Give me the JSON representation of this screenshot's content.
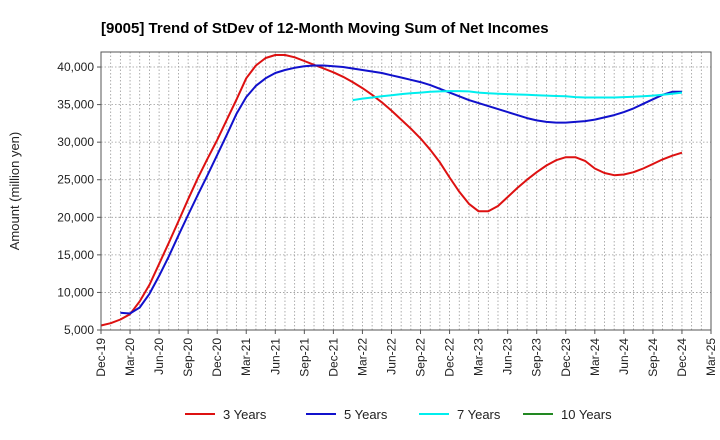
{
  "chart_data": {
    "type": "line",
    "title": "[9005]  Trend of StDev of 12-Month Moving Sum of Net Incomes",
    "ylabel": "Amount (million yen)",
    "xlabel": "",
    "ylim": [
      5000,
      42000
    ],
    "yticks": [
      5000,
      10000,
      15000,
      20000,
      25000,
      30000,
      35000,
      40000
    ],
    "ytick_labels": [
      "5,000",
      "10,000",
      "15,000",
      "20,000",
      "25,000",
      "30,000",
      "35,000",
      "40,000"
    ],
    "xticks": [
      "Dec-19",
      "Mar-20",
      "Jun-20",
      "Sep-20",
      "Dec-20",
      "Mar-21",
      "Jun-21",
      "Sep-21",
      "Dec-21",
      "Mar-22",
      "Jun-22",
      "Sep-22",
      "Dec-22",
      "Mar-23",
      "Jun-23",
      "Sep-23",
      "Dec-23",
      "Mar-24",
      "Jun-24",
      "Sep-24",
      "Dec-24",
      "Mar-25"
    ],
    "grid": true,
    "legend_position": "bottom",
    "series": [
      {
        "name": "3 Years",
        "color": "#dd1111",
        "x": [
          "2019-12",
          "2020-01",
          "2020-02",
          "2020-03",
          "2020-04",
          "2020-05",
          "2020-06",
          "2020-07",
          "2020-08",
          "2020-09",
          "2020-10",
          "2020-11",
          "2020-12",
          "2021-01",
          "2021-02",
          "2021-03",
          "2021-04",
          "2021-05",
          "2021-06",
          "2021-07",
          "2021-08",
          "2021-09",
          "2021-10",
          "2021-11",
          "2021-12",
          "2022-01",
          "2022-02",
          "2022-03",
          "2022-04",
          "2022-05",
          "2022-06",
          "2022-07",
          "2022-08",
          "2022-09",
          "2022-10",
          "2022-11",
          "2022-12",
          "2023-01",
          "2023-02",
          "2023-03",
          "2023-04",
          "2023-05",
          "2023-06",
          "2023-07",
          "2023-08",
          "2023-09",
          "2023-10",
          "2023-11",
          "2023-12",
          "2024-01",
          "2024-02",
          "2024-03",
          "2024-04",
          "2024-05",
          "2024-06",
          "2024-07",
          "2024-08",
          "2024-09",
          "2024-10",
          "2024-11",
          "2024-12"
        ],
        "values": [
          5600,
          5900,
          6400,
          7100,
          8800,
          11000,
          13800,
          16600,
          19500,
          22400,
          25200,
          27800,
          30300,
          33000,
          35700,
          38500,
          40200,
          41200,
          41600,
          41600,
          41300,
          40800,
          40300,
          39800,
          39300,
          38700,
          38000,
          37200,
          36300,
          35300,
          34200,
          33000,
          31800,
          30500,
          29000,
          27300,
          25300,
          23400,
          21800,
          20800,
          20800,
          21500,
          22700,
          23900,
          25000,
          26000,
          26900,
          27600,
          28000,
          28000,
          27500,
          26500,
          25900,
          25600,
          25700,
          26000,
          26500,
          27100,
          27700,
          28200,
          28600
        ]
      },
      {
        "name": "5 Years",
        "color": "#1111cc",
        "x": [
          "2020-02",
          "2020-03",
          "2020-04",
          "2020-05",
          "2020-06",
          "2020-07",
          "2020-08",
          "2020-09",
          "2020-10",
          "2020-11",
          "2020-12",
          "2021-01",
          "2021-02",
          "2021-03",
          "2021-04",
          "2021-05",
          "2021-06",
          "2021-07",
          "2021-08",
          "2021-09",
          "2021-10",
          "2021-11",
          "2021-12",
          "2022-01",
          "2022-02",
          "2022-03",
          "2022-04",
          "2022-05",
          "2022-06",
          "2022-07",
          "2022-08",
          "2022-09",
          "2022-10",
          "2022-11",
          "2022-12",
          "2023-01",
          "2023-02",
          "2023-03",
          "2023-04",
          "2023-05",
          "2023-06",
          "2023-07",
          "2023-08",
          "2023-09",
          "2023-10",
          "2023-11",
          "2023-12",
          "2024-01",
          "2024-02",
          "2024-03",
          "2024-04",
          "2024-05",
          "2024-06",
          "2024-07",
          "2024-08",
          "2024-09",
          "2024-10",
          "2024-11",
          "2024-12"
        ],
        "values": [
          7300,
          7200,
          8000,
          9800,
          12200,
          14800,
          17600,
          20300,
          23000,
          25600,
          28300,
          31000,
          33800,
          36000,
          37500,
          38500,
          39200,
          39600,
          39900,
          40100,
          40200,
          40200,
          40100,
          40000,
          39800,
          39600,
          39400,
          39200,
          38900,
          38600,
          38300,
          38000,
          37600,
          37100,
          36600,
          36100,
          35600,
          35200,
          34800,
          34400,
          34000,
          33600,
          33200,
          32900,
          32700,
          32600,
          32600,
          32700,
          32800,
          33000,
          33300,
          33600,
          34000,
          34500,
          35100,
          35700,
          36300,
          36700,
          36700
        ]
      },
      {
        "name": "7 Years",
        "color": "#00eeee",
        "x": [
          "2022-02",
          "2022-03",
          "2022-04",
          "2022-05",
          "2022-06",
          "2022-07",
          "2022-08",
          "2022-09",
          "2022-10",
          "2022-11",
          "2022-12",
          "2023-01",
          "2023-02",
          "2023-03",
          "2023-04",
          "2023-05",
          "2023-06",
          "2023-07",
          "2023-08",
          "2023-09",
          "2023-10",
          "2023-11",
          "2023-12",
          "2024-01",
          "2024-02",
          "2024-03",
          "2024-04",
          "2024-05",
          "2024-06",
          "2024-07",
          "2024-08",
          "2024-09",
          "2024-10",
          "2024-11",
          "2024-12"
        ],
        "values": [
          35600,
          35800,
          35950,
          36100,
          36250,
          36400,
          36500,
          36600,
          36700,
          36750,
          36800,
          36800,
          36750,
          36600,
          36500,
          36450,
          36400,
          36350,
          36300,
          36250,
          36200,
          36150,
          36100,
          36000,
          35950,
          35950,
          35950,
          35950,
          36000,
          36050,
          36100,
          36200,
          36300,
          36450,
          36600
        ]
      },
      {
        "name": "10 Years",
        "color": "#228822",
        "x": [],
        "values": []
      }
    ]
  }
}
